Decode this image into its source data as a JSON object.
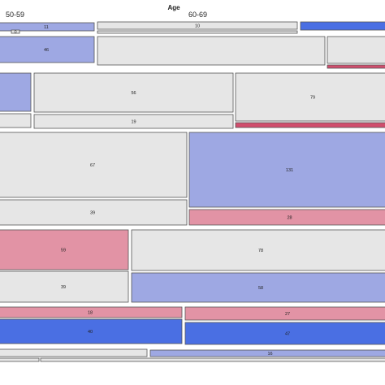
{
  "header": {
    "title": "Age",
    "columns": [
      "50-59",
      "60-69"
    ]
  },
  "colors": {
    "blue_strong": "#4a6fe3",
    "blue_light": "#9ea8e3",
    "neutral": "#e6e6e6",
    "red_light": "#e293a5",
    "red_strong": "#d04e6d",
    "border": "#555555"
  },
  "chart_data": {
    "type": "mosaic",
    "title": "Age",
    "column_labels": [
      "50-59",
      "60-69"
    ],
    "cells": [
      {
        "label": "11",
        "shade": "blue_light"
      },
      {
        "label": "0",
        "shade": "neutral"
      },
      {
        "label": "10",
        "shade": "neutral"
      },
      {
        "label": "",
        "shade": "neutral"
      },
      {
        "label": "",
        "shade": "blue_strong"
      },
      {
        "label": "46",
        "shade": "blue_light"
      },
      {
        "label": "",
        "shade": "neutral"
      },
      {
        "label": "",
        "shade": "neutral"
      },
      {
        "label": "",
        "shade": "red_strong"
      },
      {
        "label": "",
        "shade": "blue_light"
      },
      {
        "label": "56",
        "shade": "neutral"
      },
      {
        "label": "79",
        "shade": "neutral"
      },
      {
        "label": "",
        "shade": "neutral"
      },
      {
        "label": "19",
        "shade": "neutral"
      },
      {
        "label": "",
        "shade": "red_strong"
      },
      {
        "label": "67",
        "shade": "neutral"
      },
      {
        "label": "131",
        "shade": "blue_light"
      },
      {
        "label": "39",
        "shade": "neutral"
      },
      {
        "label": "28",
        "shade": "red_light"
      },
      {
        "label": "59",
        "shade": "red_light"
      },
      {
        "label": "78",
        "shade": "neutral"
      },
      {
        "label": "39",
        "shade": "neutral"
      },
      {
        "label": "58",
        "shade": "blue_light"
      },
      {
        "label": "18",
        "shade": "red_light"
      },
      {
        "label": "27",
        "shade": "red_light"
      },
      {
        "label": "40",
        "shade": "blue_strong"
      },
      {
        "label": "47",
        "shade": "blue_strong"
      },
      {
        "label": "",
        "shade": "neutral"
      },
      {
        "label": "16",
        "shade": "blue_light"
      },
      {
        "label": "",
        "shade": "neutral"
      },
      {
        "label": "",
        "shade": "neutral"
      }
    ]
  }
}
